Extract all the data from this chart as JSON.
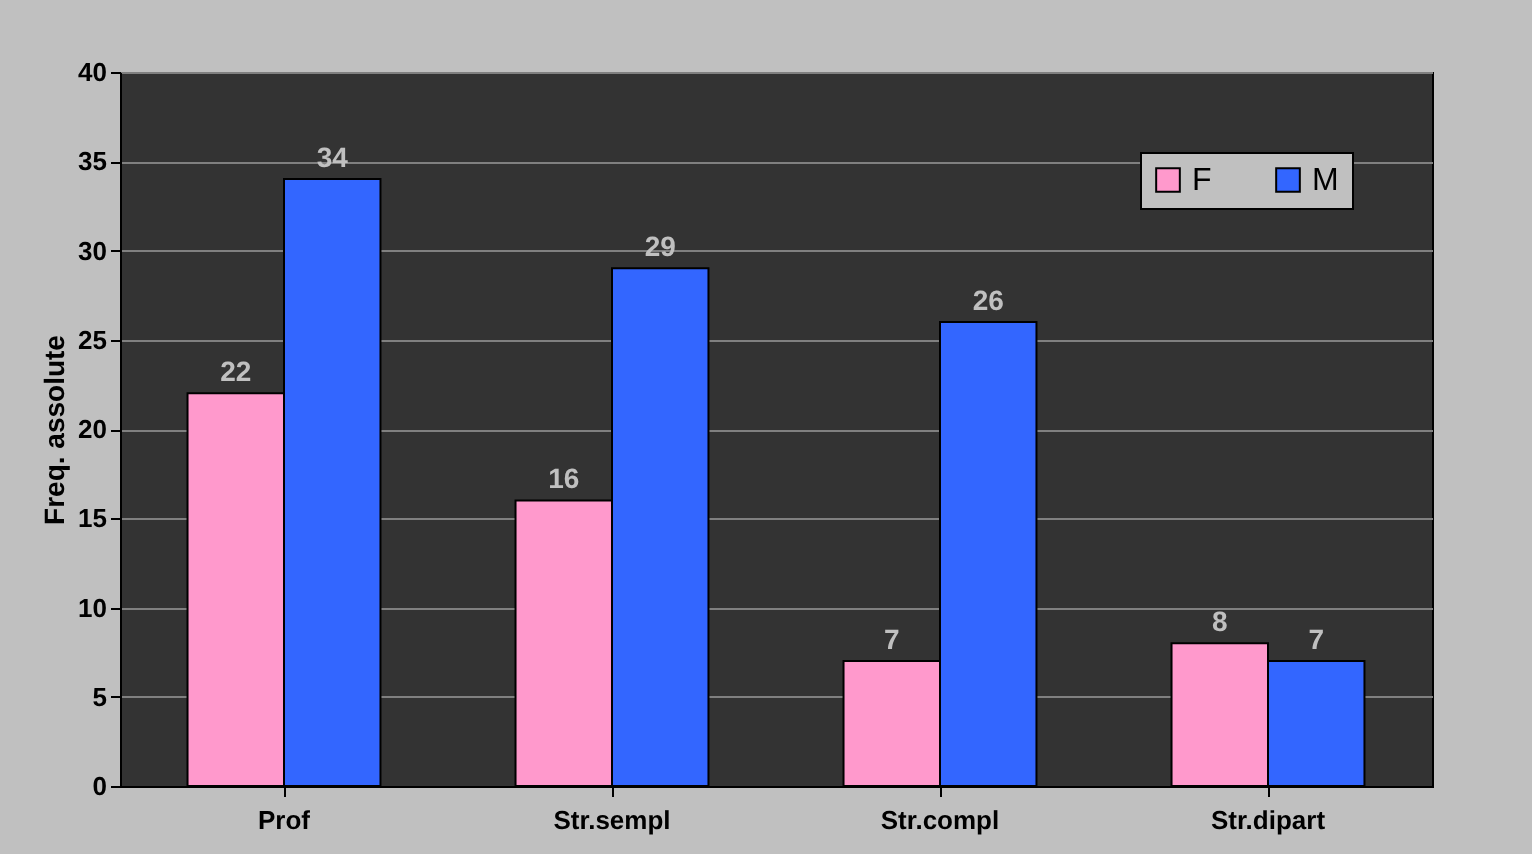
{
  "chart_data": {
    "type": "bar",
    "ylabel": "Freq. assolute",
    "categories": [
      "Prof",
      "Str.sempl",
      "Str.compl",
      "Str.dipart"
    ],
    "series": [
      {
        "name": "F",
        "color": "#ff99cc",
        "values": [
          22,
          16,
          7,
          8
        ]
      },
      {
        "name": "M",
        "color": "#3366ff",
        "values": [
          34,
          29,
          26,
          7
        ]
      }
    ],
    "ylim": [
      0,
      40
    ],
    "yticks": [
      0,
      5,
      10,
      15,
      20,
      25,
      30,
      35,
      40
    ],
    "grid": "y",
    "legend": "top right",
    "data_labels": true
  }
}
